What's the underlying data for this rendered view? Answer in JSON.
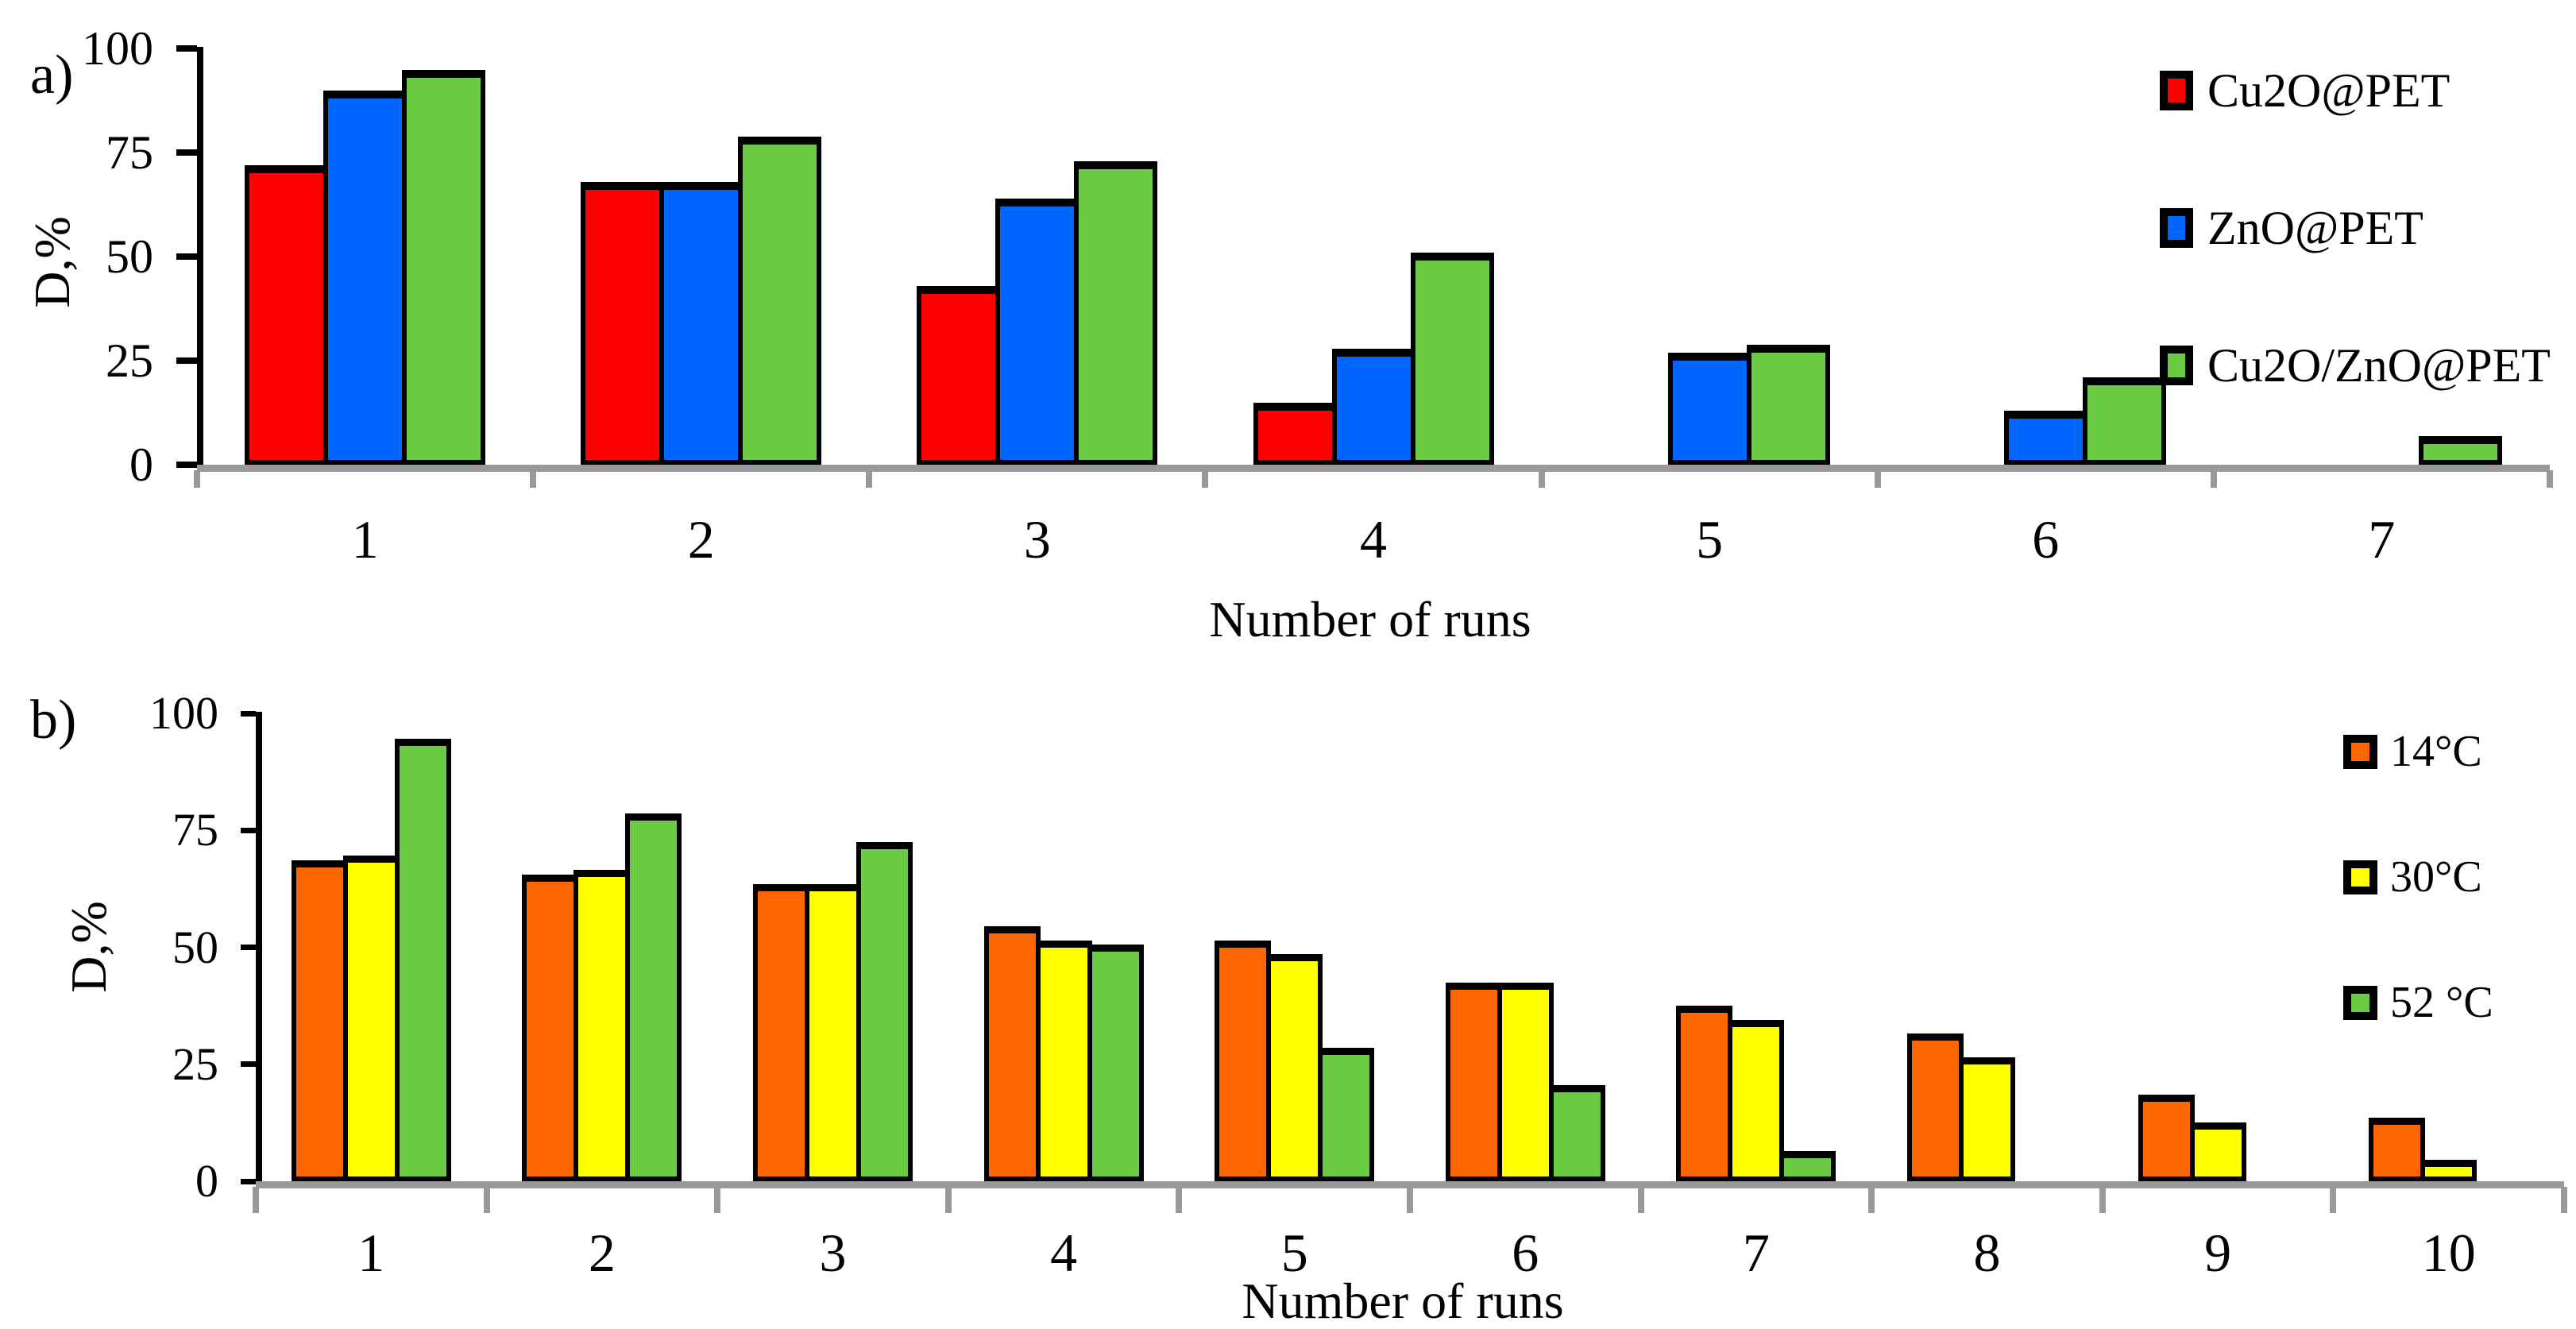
{
  "figure": {
    "panels": [
      {
        "tag": "a)"
      },
      {
        "tag": "b)"
      }
    ]
  },
  "axis_colors": {
    "axis_black": "#000000",
    "baseline_gray": "#999999"
  },
  "chart_data": [
    {
      "type": "bar",
      "panel": "a",
      "title": "",
      "xlabel": "Number of runs",
      "ylabel": "D,%",
      "ylim": [
        0,
        100
      ],
      "yticks": [
        0,
        25,
        50,
        75,
        100
      ],
      "grid": false,
      "legend_position": "top-right",
      "categories": [
        "1",
        "2",
        "3",
        "4",
        "5",
        "6",
        "7"
      ],
      "series": [
        {
          "name": "Cu2O@PET",
          "color": "#FF0000",
          "values": [
            70,
            66,
            41,
            13,
            null,
            null,
            null
          ]
        },
        {
          "name": "ZnO@PET",
          "color": "#0066FF",
          "values": [
            88,
            66,
            62,
            26,
            25,
            11,
            null
          ]
        },
        {
          "name": "Cu2O/ZnO@PET",
          "color": "#6BCB43",
          "values": [
            93,
            77,
            71,
            49,
            27,
            19,
            5
          ]
        }
      ]
    },
    {
      "type": "bar",
      "panel": "b",
      "title": "",
      "xlabel": "Number of runs",
      "ylabel": "D,%",
      "ylim": [
        0,
        100
      ],
      "yticks": [
        0,
        25,
        50,
        75,
        100
      ],
      "grid": false,
      "legend_position": "top-right",
      "categories": [
        "1",
        "2",
        "3",
        "4",
        "5",
        "6",
        "7",
        "8",
        "9",
        "10"
      ],
      "series": [
        {
          "name": "14°C",
          "color": "#FF6600",
          "values": [
            67,
            64,
            62,
            53,
            50,
            41,
            36,
            30,
            17,
            12
          ]
        },
        {
          "name": "30°C",
          "color": "#FFFF00",
          "values": [
            68,
            65,
            62,
            50,
            47,
            41,
            33,
            25,
            11,
            3
          ]
        },
        {
          "name": "52 °C",
          "color": "#6BCB43",
          "values": [
            93,
            77,
            71,
            49,
            27,
            19,
            5,
            null,
            null,
            null
          ]
        }
      ]
    }
  ]
}
